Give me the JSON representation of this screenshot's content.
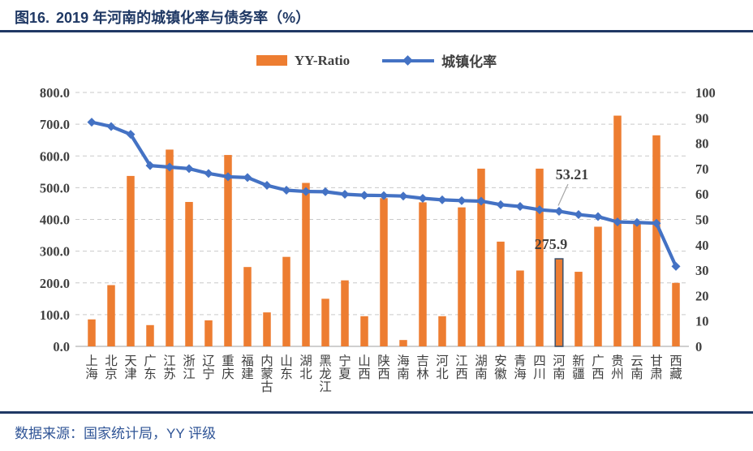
{
  "figure": {
    "label": "图16.",
    "title": "2019 年河南的城镇化率与债务率（%）"
  },
  "legend": [
    {
      "name": "YY-Ratio",
      "marker": "bar-swatch",
      "color": "#ED7D31"
    },
    {
      "name": "城镇化率",
      "marker": "line-diamond-swatch",
      "color": "#4472C4"
    }
  ],
  "chart_data": {
    "type": "bar",
    "title": "图16. 2019 年河南的城镇化率与债务率（%）",
    "legend_position": "top",
    "grid": "horizontal dashed",
    "categories": [
      "上海",
      "北京",
      "天津",
      "广东",
      "江苏",
      "浙江",
      "辽宁",
      "重庆",
      "福建",
      "内蒙古",
      "山东",
      "湖北",
      "黑龙江",
      "宁夏",
      "山西",
      "陕西",
      "海南",
      "吉林",
      "河北",
      "江西",
      "湖南",
      "安徽",
      "青海",
      "四川",
      "河南",
      "新疆",
      "广西",
      "贵州",
      "云南",
      "甘肃",
      "西藏"
    ],
    "series": [
      {
        "name": "YY-Ratio",
        "type": "bar",
        "axis": "left",
        "color": "#ED7D31",
        "values": [
          85,
          193,
          537,
          67,
          620,
          455,
          82,
          603,
          250,
          107,
          282,
          515,
          150,
          208,
          95,
          467,
          20,
          454,
          95,
          438,
          560,
          330,
          239,
          560,
          275.9,
          235,
          377,
          727,
          388,
          665,
          200
        ]
      },
      {
        "name": "城镇化率",
        "type": "line",
        "axis": "right",
        "color": "#4472C4",
        "values": [
          88.3,
          86.6,
          83.5,
          71.2,
          70.6,
          70.0,
          68.1,
          66.8,
          66.5,
          63.4,
          61.5,
          61.0,
          60.9,
          59.9,
          59.5,
          59.4,
          59.2,
          58.3,
          57.7,
          57.4,
          57.2,
          55.8,
          55.1,
          53.8,
          53.21,
          51.9,
          51.1,
          49.0,
          48.8,
          48.5,
          31.5
        ]
      }
    ],
    "left_axis": {
      "range": [
        0,
        800
      ],
      "tick_labels": [
        "800.0",
        "700.0",
        "600.0",
        "500.0",
        "400.0",
        "300.0",
        "200.0",
        "100.0",
        "0.0"
      ]
    },
    "right_axis": {
      "range": [
        0,
        100
      ],
      "tick_labels": [
        "100",
        "90",
        "80",
        "70",
        "60",
        "50",
        "40",
        "30",
        "20",
        "10",
        "0"
      ]
    },
    "highlight_category": "河南",
    "highlight_outline": "#44546A",
    "annotations": [
      {
        "text": "53.21",
        "target": "河南",
        "series": "城镇化率"
      },
      {
        "text": "275.9",
        "target": "河南",
        "series": "YY-Ratio"
      }
    ]
  },
  "footer": {
    "source": "数据来源：国家统计局，YY 评级"
  },
  "colors": {
    "title_navy": "#1F3864",
    "bar_orange": "#ED7D31",
    "line_blue": "#4472C4",
    "axis_text": "#404040",
    "gridline": "#C9C9C9",
    "baseline": "#BFBFBF",
    "footer_blue": "#2F5496",
    "leader_gray": "#A6A6A6"
  }
}
